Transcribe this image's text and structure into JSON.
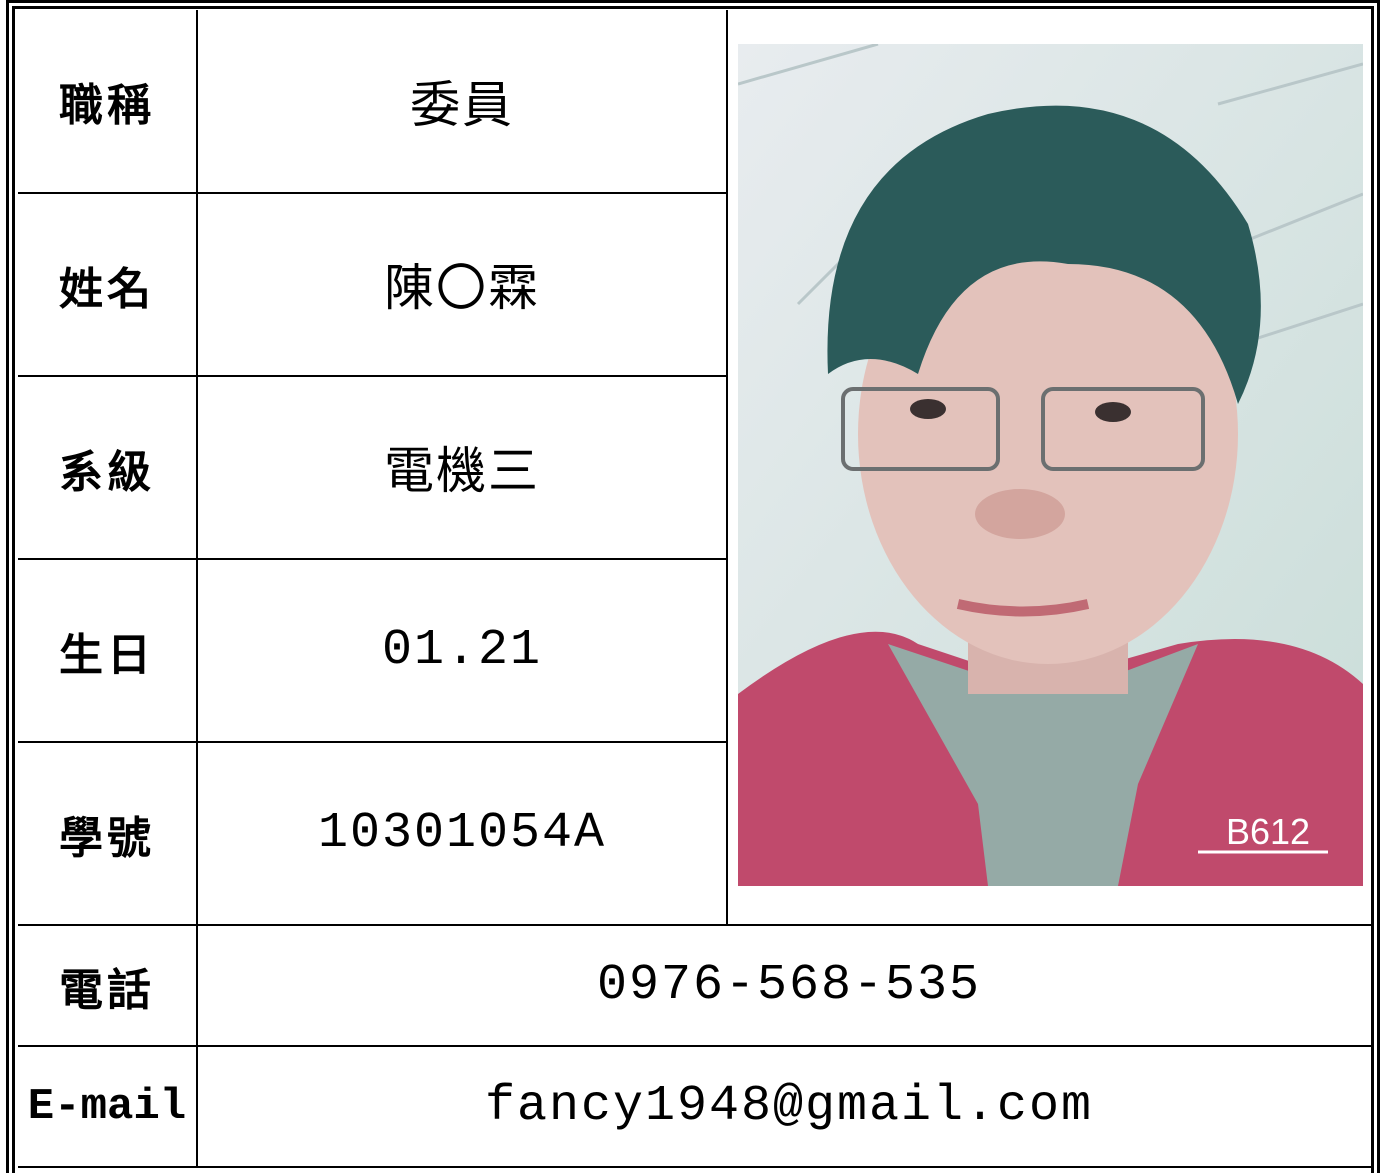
{
  "rows": [
    {
      "label": "職稱",
      "value": "委員"
    },
    {
      "label": "姓名",
      "value": "陳〇霖"
    },
    {
      "label": "系級",
      "value": "電機三"
    },
    {
      "label": "生日",
      "value": "01.21"
    },
    {
      "label": "學號",
      "value": "10301054A"
    },
    {
      "label": "電話",
      "value": "0976-568-535"
    },
    {
      "label": "E-mail",
      "value": "fancy1948@gmail.com"
    }
  ],
  "photo": {
    "watermark": "B612"
  }
}
